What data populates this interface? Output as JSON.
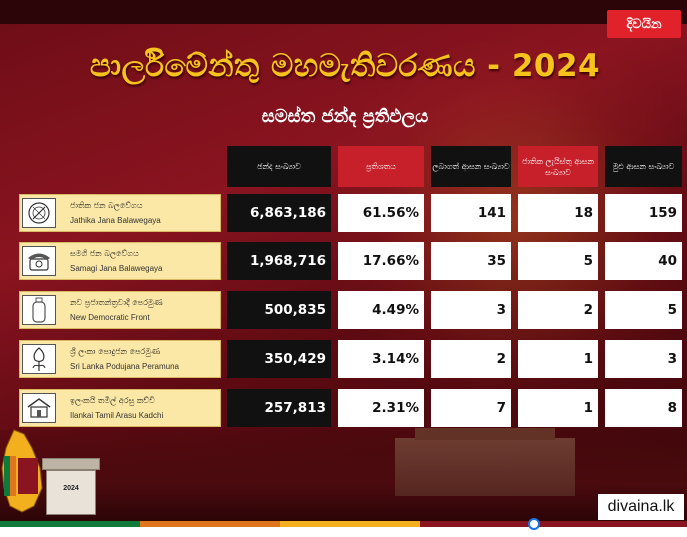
{
  "brand": "දිවයින",
  "title": "පාර්ලිමේන්තු මහමැතිවරණය - 2024",
  "subtitle": "සමස්ත ජන්ද ප්‍රතිඵලය",
  "website": "divaina.lk",
  "ballot_box_label": "2024",
  "colors": {
    "background": "#7a1019",
    "title": "#f6c31c",
    "header_black": "#111111",
    "header_red": "#c8202a",
    "party_box": "#fbe8a6",
    "brand_badge": "#e1222a"
  },
  "chart_data": {
    "type": "table",
    "title": "පාර්ලිමේන්තු මහමැතිවරණය - 2024",
    "subtitle": "සමස්ත ජන්ද ප්‍රතිඵලය",
    "columns": [
      "ඡන්ද සංඛ්‍යාව",
      "ප්‍රතිශතය",
      "ලබාගත් ආසන සංඛ්‍යාව",
      "ජාතික ලැයිස්තු ආසන සංඛ්‍යාව",
      "මුළු ආසන සංඛ්‍යාව"
    ],
    "rows": [
      {
        "party_si": "ජාතික ජන බලවේගය",
        "party_en": "Jathika Jana Balawegaya",
        "logo_icon": "compass-icon",
        "votes": "6,863,186",
        "percent": "61.56%",
        "seats": "141",
        "national_list": "18",
        "total": "159"
      },
      {
        "party_si": "සමගි ජන බලවේගය",
        "party_en": "Samagi Jana Balawegaya",
        "logo_icon": "telephone-icon",
        "votes": "1,968,716",
        "percent": "17.66%",
        "seats": "35",
        "national_list": "5",
        "total": "40"
      },
      {
        "party_si": "නව ප්‍රජාතන්ත්‍රවාදී පෙරමුණ",
        "party_en": "New Democratic Front",
        "logo_icon": "gas-cylinder-icon",
        "votes": "500,835",
        "percent": "4.49%",
        "seats": "3",
        "national_list": "2",
        "total": "5"
      },
      {
        "party_si": "ශ්‍රී ලංකා පොදුජන පෙරමුණ",
        "party_en": "Sri Lanka Podujana Peramuna",
        "logo_icon": "flower-bud-icon",
        "votes": "350,429",
        "percent": "3.14%",
        "seats": "2",
        "national_list": "1",
        "total": "3"
      },
      {
        "party_si": "ඉලංකයි තමිල් අරසු කච්චි",
        "party_en": "Ilankai Tamil Arasu Kadchi",
        "logo_icon": "house-icon",
        "votes": "257,813",
        "percent": "2.31%",
        "seats": "7",
        "national_list": "1",
        "total": "8"
      }
    ]
  }
}
